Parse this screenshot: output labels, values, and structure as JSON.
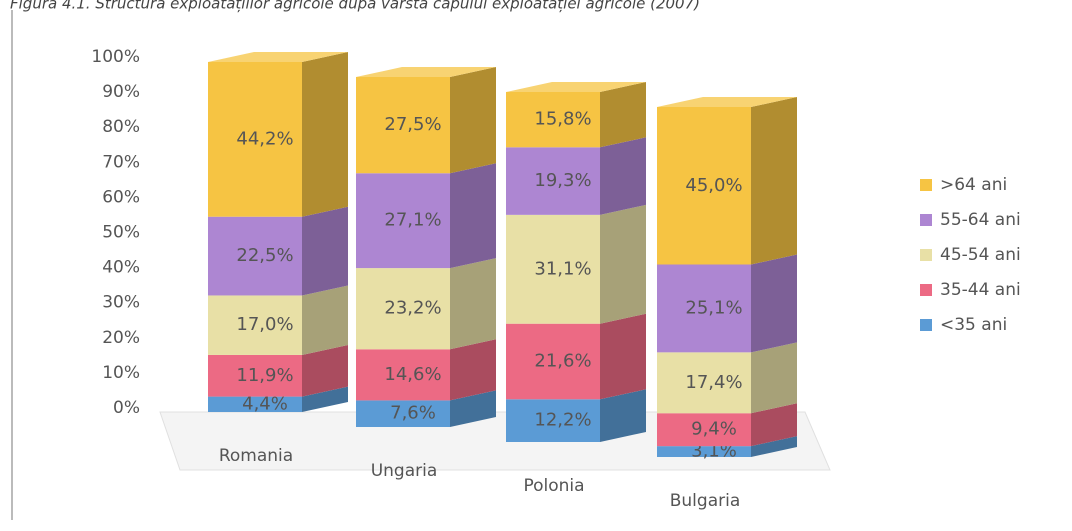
{
  "chart_data": {
    "type": "stacked_bar_3d",
    "title": "Figura 4.1. Structura exploatațiilor agricole după vârsta capului exploatației agricole (2007)",
    "categories": [
      "Romania",
      "Ungaria",
      "Polonia",
      "Bulgaria"
    ],
    "series": [
      {
        "name": "<35 ani",
        "color": "#5b9bd5",
        "values": [
          4.4,
          7.6,
          12.2,
          3.1
        ],
        "value_labels": [
          "4,4%",
          "7,6%",
          "12,2%",
          "3,1%"
        ]
      },
      {
        "name": "35-44 ani",
        "color": "#ec6a84",
        "values": [
          11.9,
          14.6,
          21.6,
          9.4
        ],
        "value_labels": [
          "11,9%",
          "14,6%",
          "21,6%",
          "9,4%"
        ]
      },
      {
        "name": "45-54 ani",
        "color": "#e8e0a6",
        "values": [
          17.0,
          23.2,
          31.1,
          17.4
        ],
        "value_labels": [
          "17,0%",
          "23,2%",
          "31,1%",
          "17,4%"
        ]
      },
      {
        "name": "55-64 ani",
        "color": "#ad86d2",
        "values": [
          22.5,
          27.1,
          19.3,
          25.1
        ],
        "value_labels": [
          "22,5%",
          "27,1%",
          "19,3%",
          "25,1%"
        ]
      },
      {
        "name": ">64 ani",
        "color": "#f6c443",
        "values": [
          44.2,
          27.5,
          15.8,
          45.0
        ],
        "value_labels": [
          "44,2%",
          "27,5%",
          "15,8%",
          "45,0%"
        ]
      }
    ],
    "ylim": [
      0,
      100
    ],
    "yticks": [
      {
        "value": 0,
        "label": "0%"
      },
      {
        "value": 10,
        "label": "10%"
      },
      {
        "value": 20,
        "label": "20%"
      },
      {
        "value": 30,
        "label": "30%"
      },
      {
        "value": 40,
        "label": "40%"
      },
      {
        "value": 50,
        "label": "50%"
      },
      {
        "value": 60,
        "label": "60%"
      },
      {
        "value": 70,
        "label": "70%"
      },
      {
        "value": 80,
        "label": "80%"
      },
      {
        "value": 90,
        "label": "90%"
      },
      {
        "value": 100,
        "label": "100%"
      }
    ],
    "legend": "right"
  }
}
